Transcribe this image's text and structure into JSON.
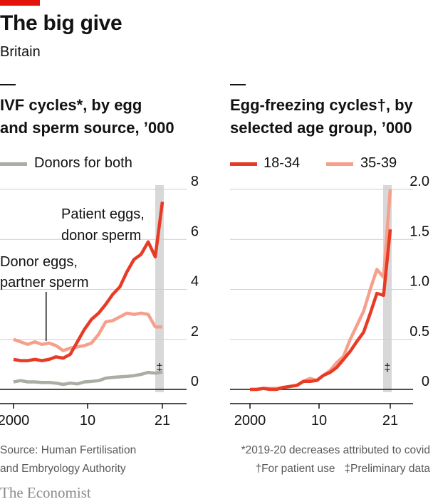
{
  "header": {
    "title": "The big give",
    "subtitle": "Britain"
  },
  "colors": {
    "brand_red": "#e3120b",
    "series_dark_red": "#e83b25",
    "series_light_red": "#f6a08c",
    "series_grey": "#a8aea4",
    "shade": "#d8d8d8",
    "grid": "#cfcfcf"
  },
  "chart_data": [
    {
      "type": "line",
      "title": "IVF cycles*, by egg and sperm source, '000",
      "title_lines": [
        "IVF cycles*, by egg",
        "and sperm source, ’000"
      ],
      "legend": [
        "Donors for both"
      ],
      "legend_position": "top-left",
      "x_ticks": [
        "2000",
        "10",
        "21"
      ],
      "y_ticks": [
        "0",
        "2",
        "4",
        "6",
        "8"
      ],
      "xlim": [
        1999,
        2024
      ],
      "ylim": [
        0,
        8
      ],
      "grid": true,
      "shaded_year": 2021,
      "shaded_marker": "‡",
      "annotations": [
        "Patient eggs,",
        "donor sperm",
        "Donor eggs,",
        "partner sperm"
      ],
      "series": [
        {
          "name": "Donors for both",
          "color_key": "series_grey",
          "x": [
            2000,
            2001,
            2002,
            2003,
            2004,
            2005,
            2006,
            2007,
            2008,
            2009,
            2010,
            2011,
            2012,
            2013,
            2014,
            2015,
            2016,
            2017,
            2018,
            2019,
            2020,
            2021
          ],
          "y": [
            0.3,
            0.35,
            0.3,
            0.3,
            0.28,
            0.28,
            0.25,
            0.2,
            0.25,
            0.22,
            0.3,
            0.32,
            0.35,
            0.45,
            0.48,
            0.5,
            0.52,
            0.55,
            0.6,
            0.68,
            0.65,
            0.7
          ]
        },
        {
          "color_key": "series_light_red",
          "x": [
            2000,
            2001,
            2002,
            2003,
            2004,
            2005,
            2006,
            2007,
            2008,
            2009,
            2010,
            2011,
            2012,
            2013,
            2014,
            2015,
            2016,
            2017,
            2018,
            2019,
            2020,
            2021
          ],
          "y": [
            2.0,
            1.9,
            1.8,
            1.9,
            1.8,
            1.85,
            1.75,
            1.55,
            1.65,
            1.7,
            1.75,
            1.85,
            2.2,
            2.7,
            2.75,
            2.9,
            3.05,
            3.0,
            3.05,
            3.0,
            2.5,
            2.5
          ]
        },
        {
          "color_key": "series_dark_red",
          "x": [
            2000,
            2001,
            2002,
            2003,
            2004,
            2005,
            2006,
            2007,
            2008,
            2009,
            2010,
            2011,
            2012,
            2013,
            2014,
            2015,
            2016,
            2017,
            2018,
            2019,
            2020,
            2021
          ],
          "y": [
            1.2,
            1.15,
            1.15,
            1.2,
            1.15,
            1.2,
            1.3,
            1.25,
            1.4,
            1.9,
            2.4,
            2.8,
            3.05,
            3.4,
            3.8,
            4.1,
            4.7,
            5.2,
            5.4,
            5.9,
            5.3,
            7.5
          ]
        }
      ]
    },
    {
      "type": "line",
      "title": "Egg-freezing cycles†, by selected age group, '000",
      "title_lines": [
        "Egg-freezing cycles†, by",
        "selected age group, ’000"
      ],
      "legend": [
        "18-34",
        "35-39"
      ],
      "legend_position": "top-left",
      "x_ticks": [
        "2000",
        "10",
        "21"
      ],
      "y_ticks": [
        "0",
        "0.5",
        "1.0",
        "1.5",
        "2.0"
      ],
      "xlim": [
        1999,
        2024
      ],
      "ylim": [
        0,
        2
      ],
      "grid": true,
      "shaded_year": 2021,
      "shaded_marker": "‡",
      "series": [
        {
          "name": "35-39",
          "color_key": "series_light_red",
          "x": [
            2000,
            2001,
            2002,
            2003,
            2004,
            2005,
            2006,
            2007,
            2008,
            2009,
            2010,
            2011,
            2012,
            2013,
            2014,
            2015,
            2016,
            2017,
            2018,
            2019,
            2020,
            2021
          ],
          "y": [
            0.0,
            0.0,
            0.01,
            0.01,
            0.01,
            0.02,
            0.03,
            0.04,
            0.08,
            0.11,
            0.09,
            0.14,
            0.19,
            0.27,
            0.33,
            0.5,
            0.64,
            0.78,
            1.0,
            1.2,
            1.12,
            2.0
          ]
        },
        {
          "name": "18-34",
          "color_key": "series_dark_red",
          "x": [
            2000,
            2001,
            2002,
            2003,
            2004,
            2005,
            2006,
            2007,
            2008,
            2009,
            2010,
            2011,
            2012,
            2013,
            2014,
            2015,
            2016,
            2017,
            2018,
            2019,
            2020,
            2021
          ],
          "y": [
            0.0,
            0.0,
            0.01,
            0.0,
            0.0,
            0.02,
            0.03,
            0.04,
            0.08,
            0.08,
            0.09,
            0.14,
            0.17,
            0.22,
            0.3,
            0.38,
            0.48,
            0.57,
            0.76,
            0.96,
            0.94,
            1.6
          ]
        }
      ]
    }
  ],
  "footer": {
    "source_line1": "Source: Human Fertilisation",
    "source_line2": "and Embryology Authority",
    "note1": "*2019-20 decreases attributed to covid",
    "note2_a": "†For patient use",
    "note2_b": "‡Preliminary data",
    "brand": "The Economist"
  }
}
